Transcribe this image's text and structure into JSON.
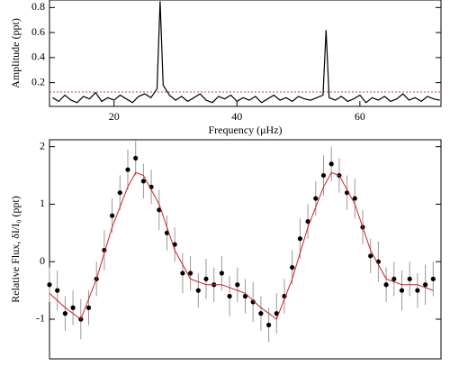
{
  "chart_data": [
    {
      "type": "line",
      "xlabel": "Frequency (μHz)",
      "ylabel": "Amplitude (ppt)",
      "xlim": [
        9.5,
        73.2
      ],
      "ylim": [
        0.01,
        0.86
      ],
      "xticks": [
        20,
        40,
        60
      ],
      "yticks": [
        0.2,
        0.4,
        0.6,
        0.8
      ],
      "threshold": 0.125,
      "threshold_color": "#c04040",
      "series": [
        {
          "color": "#000000",
          "x": [
            10,
            11,
            12,
            13,
            14,
            15,
            16,
            17,
            18,
            19,
            20,
            21,
            22,
            23,
            24,
            25,
            26,
            27,
            27.5,
            28,
            29,
            30,
            31,
            32,
            33,
            34,
            35,
            36,
            37,
            38,
            39,
            40,
            41,
            42,
            43,
            44,
            45,
            46,
            47,
            48,
            49,
            50,
            51,
            52,
            53,
            54,
            54.5,
            55,
            56,
            57,
            58,
            59,
            60,
            61,
            62,
            63,
            64,
            65,
            66,
            67,
            68,
            69,
            70,
            71,
            72,
            73
          ],
          "values": [
            0.08,
            0.05,
            0.1,
            0.06,
            0.04,
            0.09,
            0.07,
            0.12,
            0.05,
            0.08,
            0.06,
            0.1,
            0.07,
            0.04,
            0.09,
            0.11,
            0.08,
            0.15,
            0.85,
            0.18,
            0.1,
            0.06,
            0.09,
            0.05,
            0.08,
            0.11,
            0.06,
            0.04,
            0.09,
            0.07,
            0.1,
            0.05,
            0.08,
            0.06,
            0.09,
            0.04,
            0.07,
            0.1,
            0.06,
            0.08,
            0.05,
            0.09,
            0.07,
            0.06,
            0.08,
            0.1,
            0.62,
            0.08,
            0.06,
            0.09,
            0.05,
            0.07,
            0.1,
            0.04,
            0.08,
            0.06,
            0.09,
            0.05,
            0.07,
            0.11,
            0.06,
            0.08,
            0.05,
            0.09,
            0.07,
            0.06
          ]
        }
      ]
    },
    {
      "type": "scatter",
      "ylabel": "Relative Flux, δI/I₀ (ppt)",
      "xlim": [
        0,
        2
      ],
      "ylim": [
        -1.69,
        2.12
      ],
      "yticks": [
        -1,
        0,
        1,
        2
      ],
      "series": [
        {
          "color": "#000000",
          "error_color": "#999999",
          "x": [
            0,
            0.04,
            0.08,
            0.12,
            0.16,
            0.2,
            0.24,
            0.28,
            0.32,
            0.36,
            0.4,
            0.44,
            0.48,
            0.52,
            0.56,
            0.6,
            0.64,
            0.68,
            0.72,
            0.76,
            0.8,
            0.84,
            0.88,
            0.92,
            0.96,
            1,
            1.04,
            1.08,
            1.12,
            1.16,
            1.2,
            1.24,
            1.28,
            1.32,
            1.36,
            1.4,
            1.44,
            1.48,
            1.52,
            1.56,
            1.6,
            1.64,
            1.68,
            1.72,
            1.76,
            1.8,
            1.84,
            1.88,
            1.92,
            1.96
          ],
          "values": [
            -0.4,
            -0.5,
            -0.9,
            -0.8,
            -1.0,
            -0.8,
            -0.3,
            0.2,
            0.8,
            1.2,
            1.6,
            1.8,
            1.4,
            1.3,
            0.9,
            0.5,
            0.3,
            -0.2,
            -0.2,
            -0.5,
            -0.3,
            -0.4,
            -0.2,
            -0.6,
            -0.4,
            -0.6,
            -0.7,
            -0.9,
            -1.1,
            -0.9,
            -0.6,
            -0.1,
            0.4,
            0.7,
            1.1,
            1.5,
            1.7,
            1.5,
            1.2,
            1.1,
            0.6,
            0.1,
            0.0,
            -0.4,
            -0.3,
            -0.5,
            -0.3,
            -0.5,
            -0.4,
            -0.3
          ],
          "errors": [
            0.3,
            0.35,
            0.3,
            0.3,
            0.35,
            0.3,
            0.3,
            0.35,
            0.3,
            0.3,
            0.35,
            0.3,
            0.3,
            0.3,
            0.35,
            0.3,
            0.3,
            0.35,
            0.3,
            0.3,
            0.35,
            0.3,
            0.3,
            0.35,
            0.3,
            0.3,
            0.35,
            0.3,
            0.3,
            0.35,
            0.3,
            0.3,
            0.35,
            0.3,
            0.3,
            0.35,
            0.3,
            0.3,
            0.3,
            0.35,
            0.3,
            0.3,
            0.35,
            0.3,
            0.3,
            0.35,
            0.3,
            0.3,
            0.35,
            0.3
          ]
        },
        {
          "color": "#cc2222",
          "x": [
            0,
            0.08,
            0.16,
            0.24,
            0.32,
            0.4,
            0.44,
            0.48,
            0.56,
            0.64,
            0.72,
            0.8,
            0.88,
            0.96,
            1,
            1.08,
            1.16,
            1.24,
            1.32,
            1.4,
            1.44,
            1.48,
            1.56,
            1.64,
            1.72,
            1.8,
            1.88,
            1.96
          ],
          "values": [
            -0.55,
            -0.8,
            -1.0,
            -0.3,
            0.6,
            1.3,
            1.55,
            1.5,
            1.0,
            0.2,
            -0.3,
            -0.4,
            -0.4,
            -0.5,
            -0.55,
            -0.8,
            -1.0,
            -0.3,
            0.6,
            1.3,
            1.55,
            1.5,
            1.0,
            0.2,
            -0.3,
            -0.4,
            -0.4,
            -0.5
          ]
        }
      ]
    }
  ]
}
